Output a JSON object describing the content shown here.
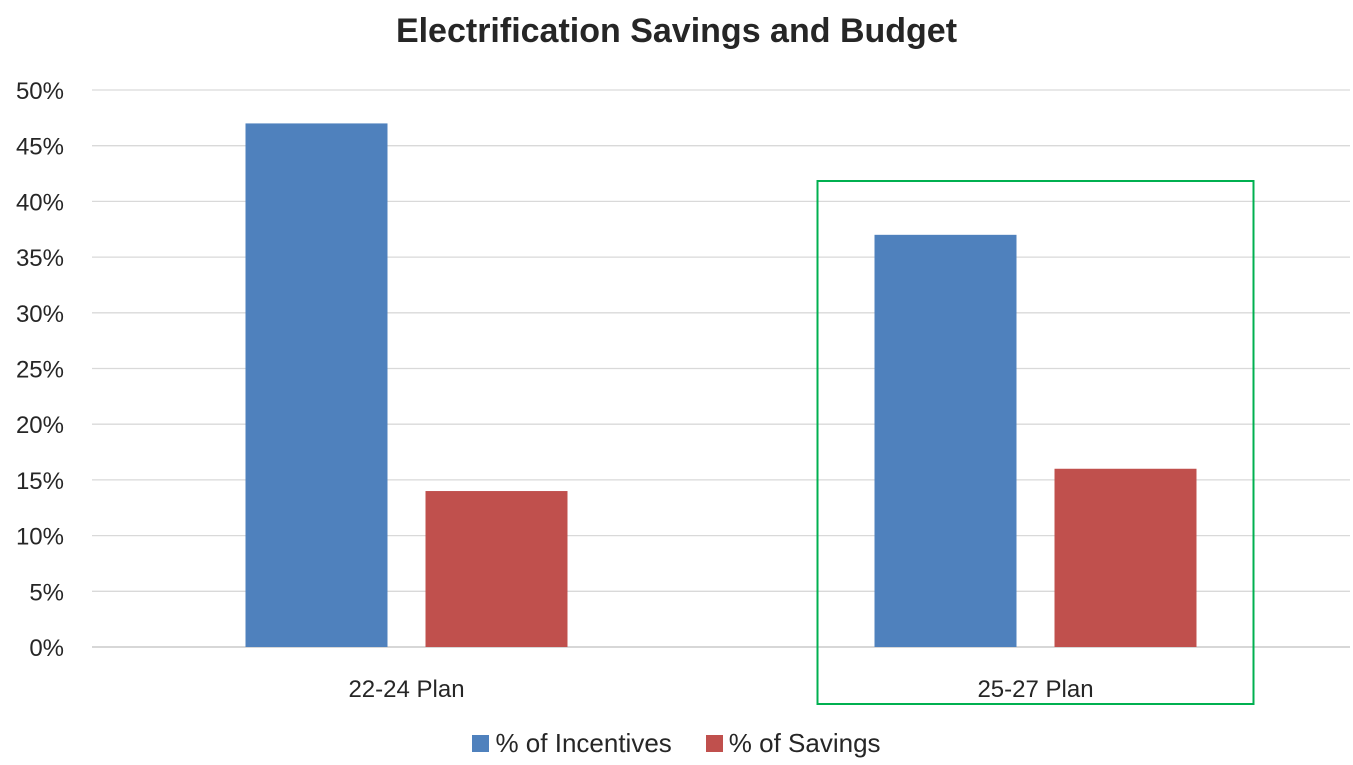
{
  "chart_data": {
    "type": "bar",
    "title": "Electrification Savings and Budget",
    "xlabel": "",
    "ylabel": "",
    "categories": [
      "22-24 Plan",
      "25-27 Plan"
    ],
    "series": [
      {
        "name": "% of Incentives",
        "color": "#4f81bd",
        "values": [
          47,
          37
        ]
      },
      {
        "name": "% of Savings",
        "color": "#c0504d",
        "values": [
          14,
          16
        ]
      }
    ],
    "ylim": [
      0,
      50
    ],
    "yticks": [
      0,
      5,
      10,
      15,
      20,
      25,
      30,
      35,
      40,
      45,
      50
    ],
    "ytick_labels": [
      "0%",
      "5%",
      "10%",
      "15%",
      "20%",
      "25%",
      "30%",
      "35%",
      "40%",
      "45%",
      "50%"
    ],
    "grid": true,
    "legend_position": "bottom",
    "highlight": {
      "category": "25-27 Plan",
      "color": "#00b050"
    }
  }
}
